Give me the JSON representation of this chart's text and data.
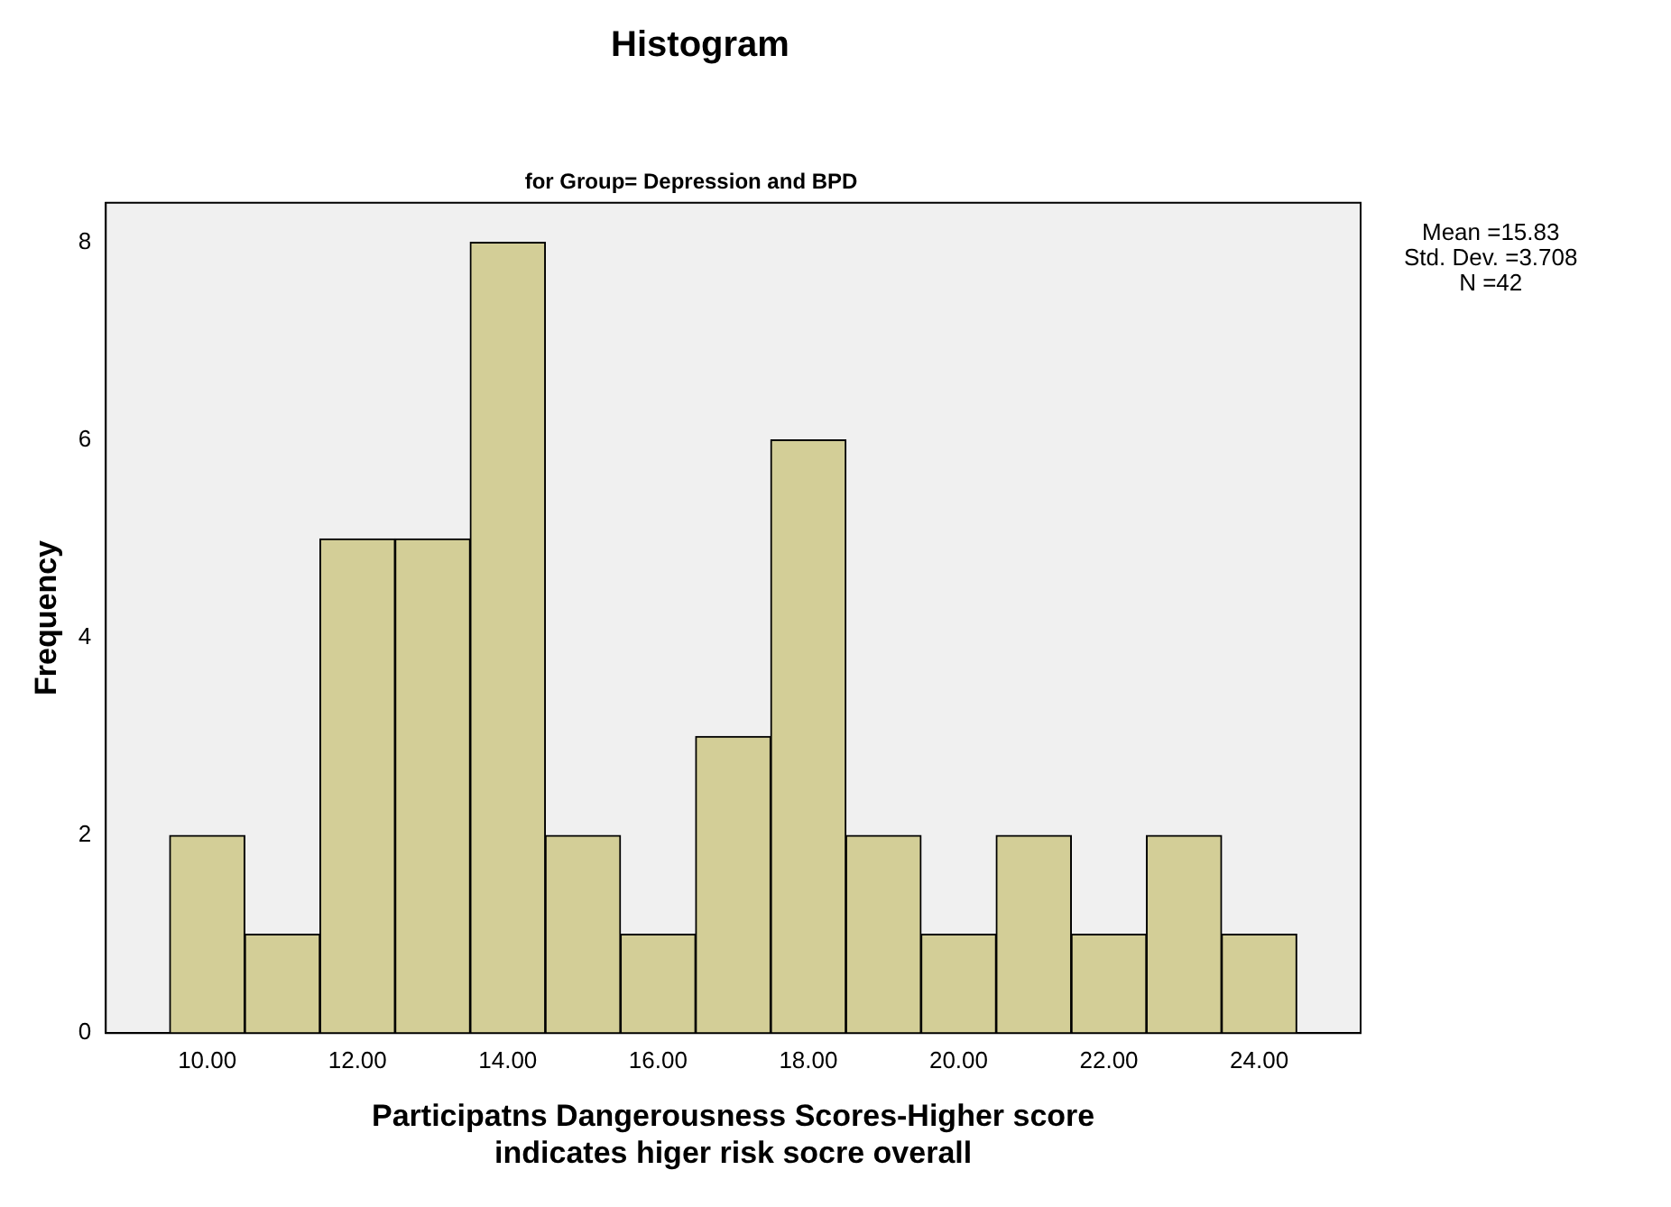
{
  "chart_data": {
    "type": "histogram",
    "title": "Histogram",
    "subtitle": "for Group= Depression and BPD",
    "xlabel": "Participatns Dangerousness Scores-Higher score indicates higer risk socre overall",
    "ylabel": "Frequency",
    "bins": [
      9.5,
      10.5,
      11.5,
      12.5,
      13.5,
      14.5,
      15.5,
      16.5,
      17.5,
      18.5,
      19.5,
      20.5,
      21.5,
      22.5,
      23.5,
      24.5
    ],
    "values": [
      2,
      1,
      5,
      5,
      8,
      2,
      1,
      3,
      6,
      2,
      1,
      2,
      1,
      2,
      1
    ],
    "color": "#d3ce97",
    "xlim": [
      8.65,
      25.35
    ],
    "xticks": [
      {
        "value": 10,
        "label": "10.00"
      },
      {
        "value": 12,
        "label": "12.00"
      },
      {
        "value": 14,
        "label": "14.00"
      },
      {
        "value": 16,
        "label": "16.00"
      },
      {
        "value": 18,
        "label": "18.00"
      },
      {
        "value": 20,
        "label": "20.00"
      },
      {
        "value": 22,
        "label": "22.00"
      },
      {
        "value": 24,
        "label": "24.00"
      }
    ],
    "ylim": [
      0,
      8.4
    ],
    "yticks": [
      0,
      2,
      4,
      6,
      8
    ],
    "grid": false,
    "legend": false,
    "annotations": [
      "Mean =15.83",
      "Std. Dev. =3.708",
      "N =42"
    ]
  }
}
